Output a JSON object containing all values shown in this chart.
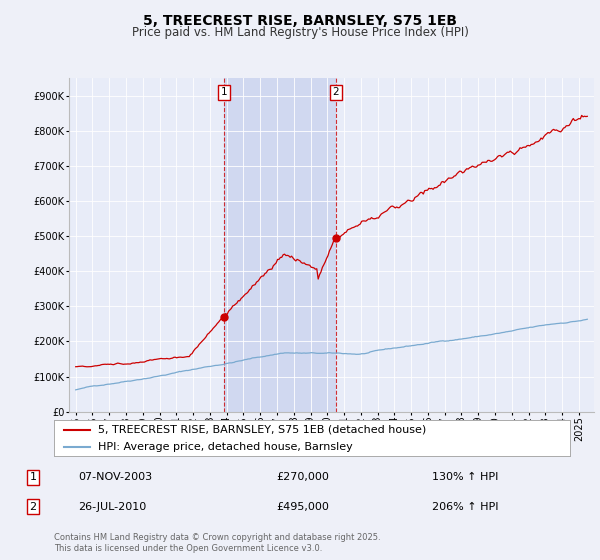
{
  "title": "5, TREECREST RISE, BARNSLEY, S75 1EB",
  "subtitle": "Price paid vs. HM Land Registry's House Price Index (HPI)",
  "background_color": "#eef0f8",
  "plot_bg_color": "#e8ecf8",
  "shaded_region_color": "#d0d8f0",
  "red_line_color": "#cc0000",
  "blue_line_color": "#7aaad0",
  "ylim": [
    0,
    950000
  ],
  "yticks": [
    0,
    100000,
    200000,
    300000,
    400000,
    500000,
    600000,
    700000,
    800000,
    900000
  ],
  "ytick_labels": [
    "£0",
    "£100K",
    "£200K",
    "£300K",
    "£400K",
    "£500K",
    "£600K",
    "£700K",
    "£800K",
    "£900K"
  ],
  "legend_entries": [
    "5, TREECREST RISE, BARNSLEY, S75 1EB (detached house)",
    "HPI: Average price, detached house, Barnsley"
  ],
  "sale1_date": "07-NOV-2003",
  "sale1_price": 270000,
  "sale1_hpi": "130% ↑ HPI",
  "sale2_date": "26-JUL-2010",
  "sale2_price": 495000,
  "sale2_hpi": "206% ↑ HPI",
  "footer": "Contains HM Land Registry data © Crown copyright and database right 2025.\nThis data is licensed under the Open Government Licence v3.0.",
  "title_fontsize": 10,
  "subtitle_fontsize": 8.5,
  "tick_fontsize": 7,
  "legend_fontsize": 8,
  "table_fontsize": 8,
  "footer_fontsize": 6
}
